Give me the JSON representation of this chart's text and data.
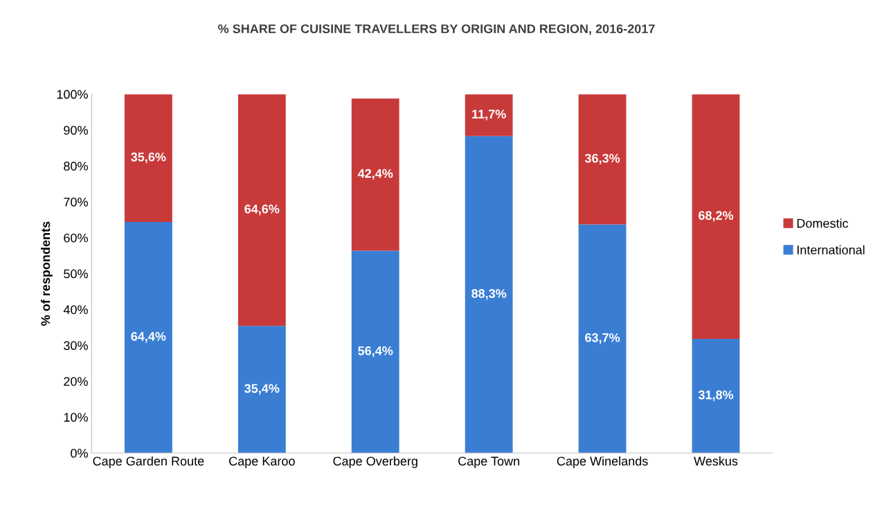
{
  "chart_data": {
    "type": "bar",
    "stacked": true,
    "title": "% SHARE OF CUISINE TRAVELLERS BY ORIGIN AND REGION, 2016-2017",
    "ylabel": "% of respondents",
    "categories": [
      "Cape Garden Route",
      "Cape Karoo",
      "Cape Overberg",
      "Cape Town",
      "Cape Winelands",
      "Weskus"
    ],
    "series": [
      {
        "name": "International",
        "color": "#3a7ed3",
        "values": [
          64.4,
          35.4,
          56.4,
          88.3,
          63.7,
          31.8
        ],
        "value_labels": [
          "64,4%",
          "35,4%",
          "56,4%",
          "88,3%",
          "63,7%",
          "31,8%"
        ]
      },
      {
        "name": "Domestic",
        "color": "#c83a3a",
        "values": [
          35.6,
          64.6,
          42.4,
          11.7,
          36.3,
          68.2
        ],
        "value_labels": [
          "35,6%",
          "64,6%",
          "42,4%",
          "11,7%",
          "36,3%",
          "68,2%"
        ]
      }
    ],
    "ylim": [
      0,
      100
    ],
    "yticks": [
      {
        "value": 0,
        "label": "0%"
      },
      {
        "value": 10,
        "label": "10%"
      },
      {
        "value": 20,
        "label": "20%"
      },
      {
        "value": 30,
        "label": "30%"
      },
      {
        "value": 40,
        "label": "40%"
      },
      {
        "value": 50,
        "label": "50%"
      },
      {
        "value": 60,
        "label": "60%"
      },
      {
        "value": 70,
        "label": "70%"
      },
      {
        "value": 80,
        "label": "80%"
      },
      {
        "value": 90,
        "label": "90%"
      },
      {
        "value": 100,
        "label": "100%"
      }
    ],
    "grid": false,
    "legend": "right"
  }
}
